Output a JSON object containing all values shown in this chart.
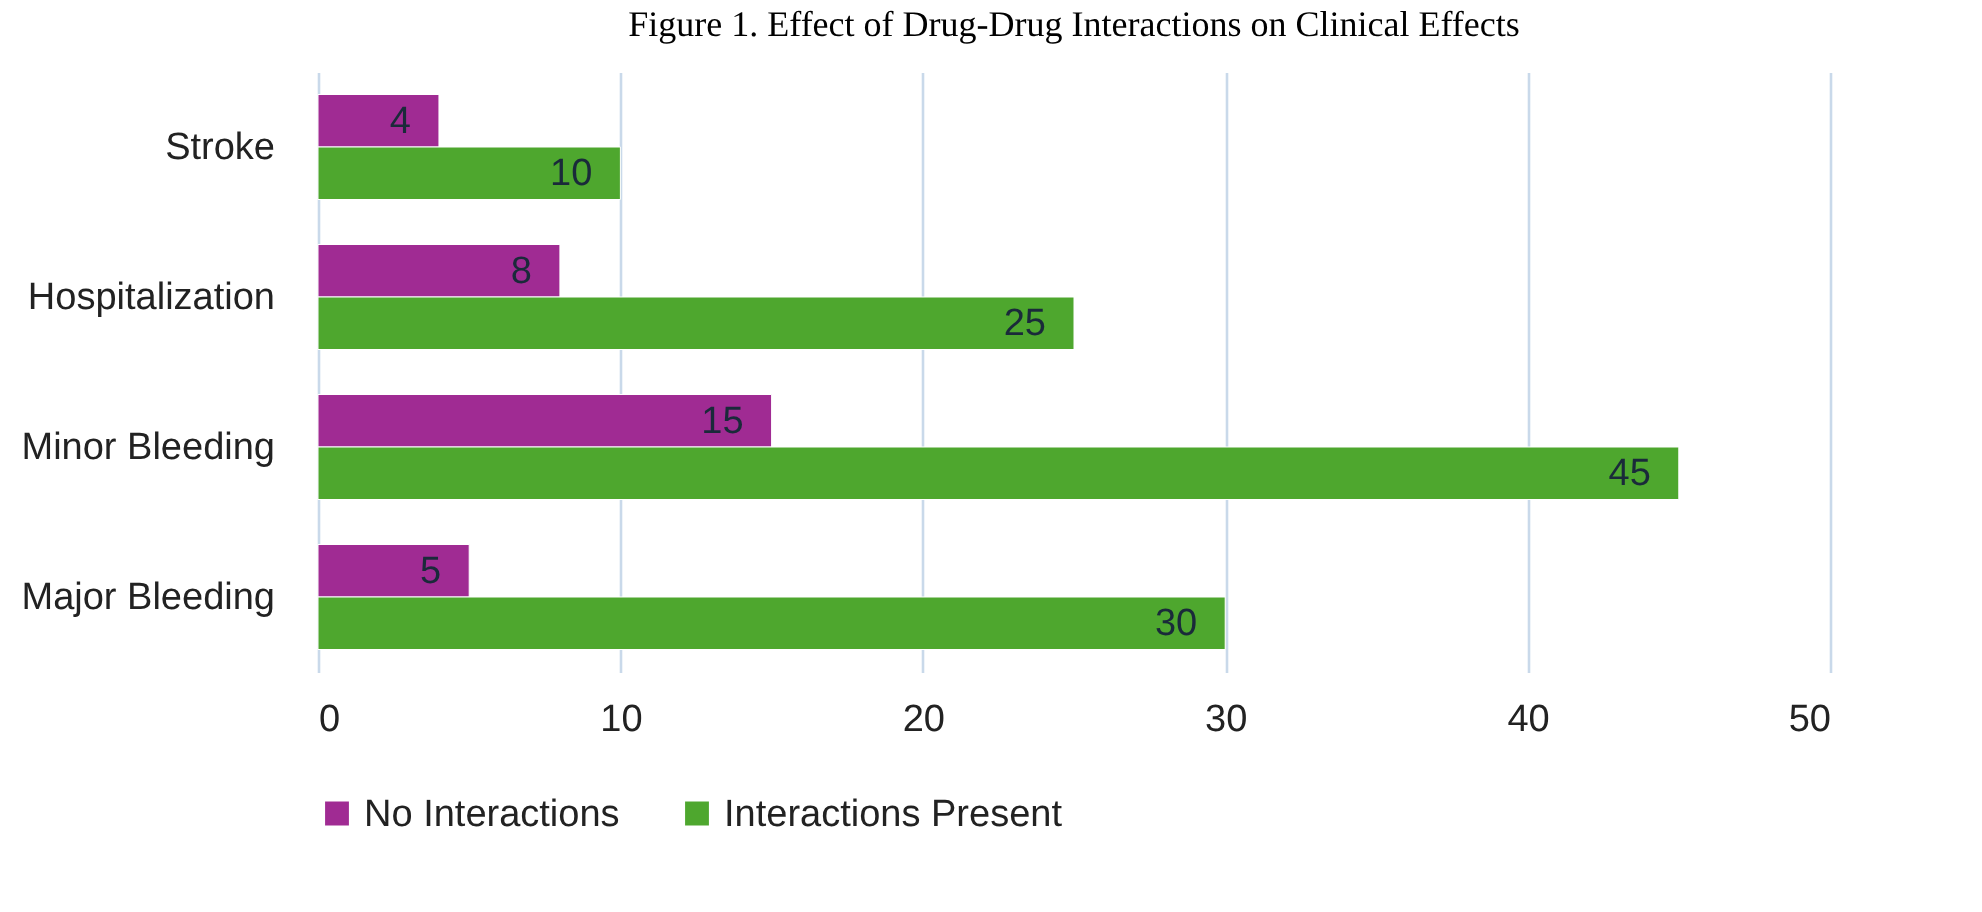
{
  "chart_data": {
    "type": "bar",
    "orientation": "horizontal",
    "title": "Figure 1. Effect of Drug-Drug Interactions on Clinical Effects",
    "categories": [
      "Stroke",
      "Hospitalization",
      "Minor Bleeding",
      "Major Bleeding"
    ],
    "series": [
      {
        "name": "No Interactions",
        "color": "#a02b93",
        "values": [
          4,
          8,
          15,
          5
        ]
      },
      {
        "name": "Interactions Present",
        "color": "#4ea72e",
        "values": [
          10,
          25,
          45,
          30
        ]
      }
    ],
    "xlim": [
      0,
      50
    ],
    "xticks": [
      0,
      10,
      20,
      30,
      40,
      50
    ],
    "grid": "x",
    "legend": "bottom",
    "data_labels": true
  }
}
